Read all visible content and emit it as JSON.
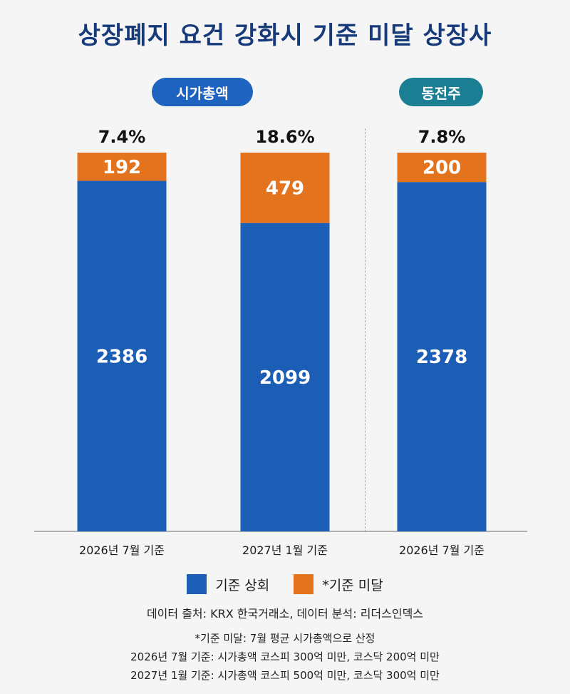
{
  "title": "상장폐지 요건 강화시 기준 미달 상장사",
  "groups": {
    "market_cap": "시가총액",
    "penny_stock": "동전주"
  },
  "legend": {
    "above": "기준 상회",
    "below": "*기준 미달"
  },
  "notes": {
    "source": "데이터 출처: KRX 한국거래소, 데이터 분석: 리더스인덱스",
    "footnote": "*기준 미달: 7월 평균 시가총액으로 산정",
    "criteria_2026": "2026년 7월 기준: 시가총액 코스피 300억 미만, 코스닥 200억 미만",
    "criteria_2027": "2027년 1월 기준: 시가총액 코스피 500억 미만, 코스닥 300억 미만"
  },
  "colors": {
    "above": "#1c5db5",
    "below": "#e3731c",
    "pill_mcap": "#1e63bf",
    "pill_penny": "#1b7f93"
  },
  "chart_data": {
    "type": "bar",
    "stacked": true,
    "categories": [
      "2026년 7월 기준",
      "2027년 1월 기준",
      "2026년 7월 기준"
    ],
    "groups": [
      "시가총액",
      "시가총액",
      "동전주"
    ],
    "series": [
      {
        "name": "기준 상회",
        "values": [
          2386,
          2099,
          2378
        ]
      },
      {
        "name": "*기준 미달",
        "values": [
          192,
          479,
          200
        ]
      }
    ],
    "percent_labels": [
      "7.4%",
      "18.6%",
      "7.8%"
    ],
    "legend": "bottom-center"
  }
}
